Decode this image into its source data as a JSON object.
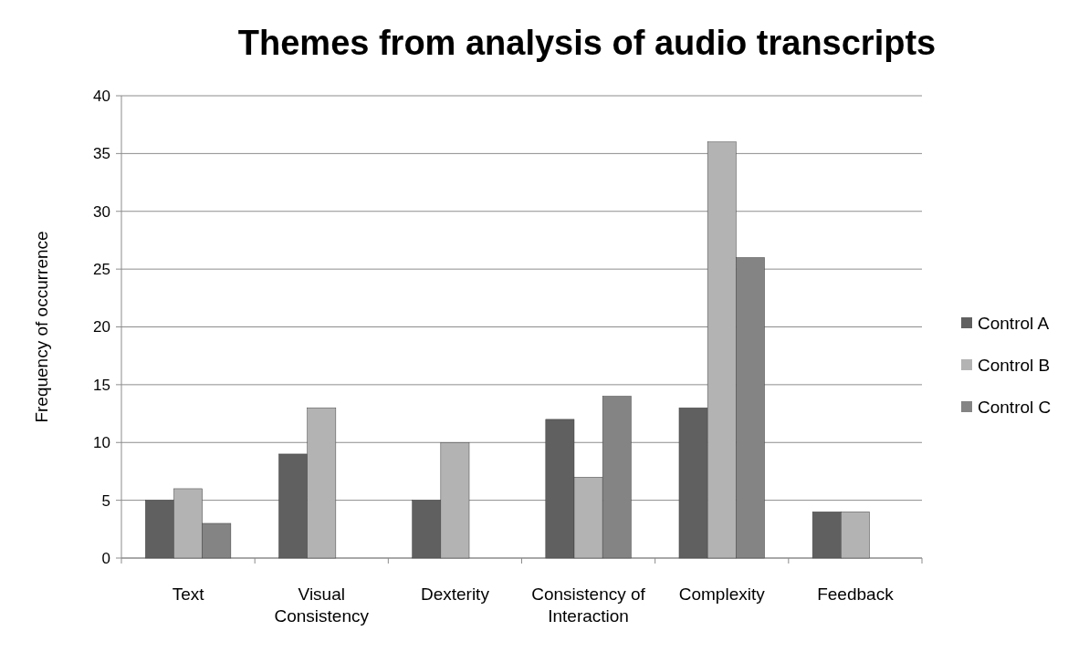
{
  "chart_data": {
    "type": "bar",
    "title": "Themes from analysis of audio transcripts",
    "ylabel": "Frequency of occurrence",
    "categories": [
      "Text",
      "Visual Consistency",
      "Dexterity",
      "Consistency of Interaction",
      "Complexity",
      "Feedback"
    ],
    "series": [
      {
        "name": "Control A",
        "color": "#606060",
        "values": [
          5,
          9,
          5,
          12,
          13,
          4
        ]
      },
      {
        "name": "Control B",
        "color": "#b3b3b3",
        "values": [
          6,
          13,
          10,
          7,
          36,
          4
        ]
      },
      {
        "name": "Control C",
        "color": "#848484",
        "values": [
          3,
          null,
          null,
          14,
          26,
          null
        ]
      }
    ],
    "ylim": [
      0,
      40
    ],
    "yticks": [
      0,
      5,
      10,
      15,
      20,
      25,
      30,
      35,
      40
    ],
    "grid": "y",
    "legend": "right"
  }
}
